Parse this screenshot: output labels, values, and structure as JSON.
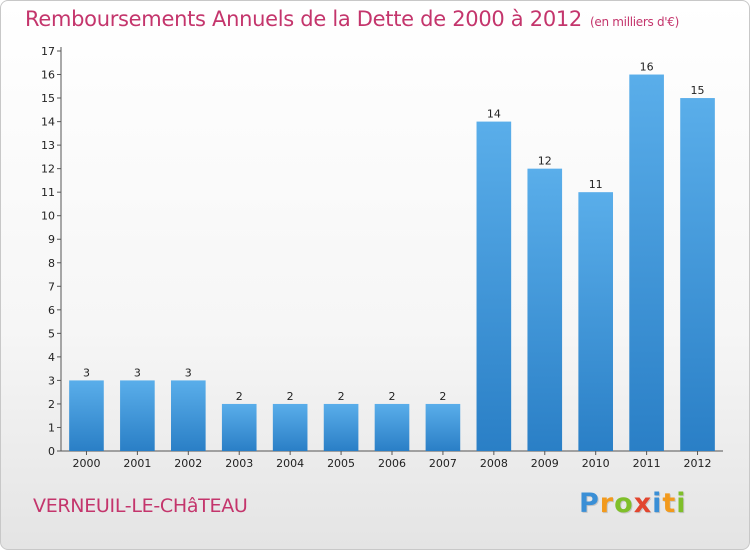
{
  "title": "Remboursements Annuels de la Dette de 2000 à 2012",
  "subtitle": "(en milliers d'€)",
  "commune": "VERNEUIL-LE-CHâTEAU",
  "logo": {
    "letters": [
      "P",
      "r",
      "o",
      "x",
      "i",
      "t",
      "i"
    ],
    "colors": [
      "#3a8fd6",
      "#f29a1d",
      "#7fbf2a",
      "#e2452e",
      "#3a8fd6",
      "#f29a1d",
      "#7fbf2a"
    ]
  },
  "colors": {
    "bar_top": "#5aaeea",
    "bar_bottom": "#2a7fc6",
    "title": "#c4356c"
  },
  "chart_data": {
    "type": "bar",
    "categories": [
      "2000",
      "2001",
      "2002",
      "2003",
      "2004",
      "2005",
      "2006",
      "2007",
      "2008",
      "2009",
      "2010",
      "2011",
      "2012"
    ],
    "values": [
      3,
      3,
      3,
      2,
      2,
      2,
      2,
      2,
      14,
      12,
      11,
      16,
      15
    ],
    "ylim": [
      0,
      17
    ],
    "yticks": [
      0,
      1,
      2,
      3,
      4,
      5,
      6,
      7,
      8,
      9,
      10,
      11,
      12,
      13,
      14,
      15,
      16,
      17
    ],
    "grid": false,
    "legend": "none"
  }
}
